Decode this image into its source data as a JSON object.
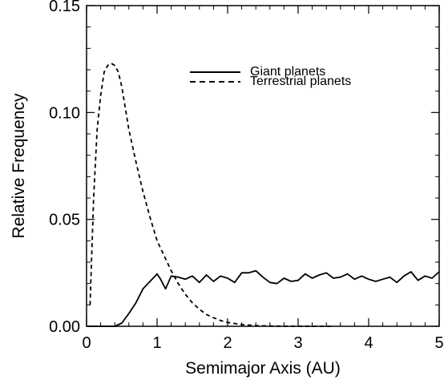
{
  "chart_data": {
    "type": "line",
    "title": "",
    "xlabel": "Semimajor Axis (AU)",
    "ylabel": "Relative Frequency",
    "xlim": [
      0,
      5
    ],
    "ylim": [
      0,
      0.15
    ],
    "x_ticks": [
      0,
      1,
      2,
      3,
      4,
      5
    ],
    "x_tick_labels": [
      "0",
      "1",
      "2",
      "3",
      "4",
      "5"
    ],
    "y_ticks": [
      0,
      0.05,
      0.1,
      0.15
    ],
    "y_tick_labels": [
      "0.00",
      "0.05",
      "0.10",
      "0.15"
    ],
    "grid": false,
    "legend_position": "top-right",
    "series": [
      {
        "name": "Giant planets",
        "line_style": "solid",
        "color": "#000000",
        "x": [
          0.02,
          0.1,
          0.2,
          0.3,
          0.4,
          0.5,
          0.6,
          0.7,
          0.8,
          0.9,
          1.0,
          1.05,
          1.12,
          1.2,
          1.3,
          1.4,
          1.5,
          1.6,
          1.7,
          1.8,
          1.9,
          2.0,
          2.1,
          2.2,
          2.3,
          2.4,
          2.5,
          2.6,
          2.7,
          2.8,
          2.9,
          3.0,
          3.1,
          3.2,
          3.3,
          3.4,
          3.5,
          3.6,
          3.7,
          3.8,
          3.9,
          4.0,
          4.1,
          4.2,
          4.3,
          4.4,
          4.5,
          4.6,
          4.7,
          4.8,
          4.9,
          5.0
        ],
        "y": [
          0.0,
          0.0,
          0.0,
          0.0,
          0.0,
          0.0015,
          0.006,
          0.011,
          0.0175,
          0.021,
          0.0245,
          0.022,
          0.0175,
          0.0235,
          0.023,
          0.022,
          0.0235,
          0.0205,
          0.024,
          0.021,
          0.0235,
          0.0225,
          0.0205,
          0.025,
          0.025,
          0.026,
          0.023,
          0.0205,
          0.02,
          0.0225,
          0.021,
          0.0215,
          0.0245,
          0.0225,
          0.024,
          0.025,
          0.0225,
          0.023,
          0.0245,
          0.022,
          0.0235,
          0.022,
          0.021,
          0.022,
          0.023,
          0.0205,
          0.0235,
          0.0255,
          0.0215,
          0.0235,
          0.0225,
          0.0255
        ]
      },
      {
        "name": "Terrestrial planets",
        "line_style": "dashed",
        "color": "#000000",
        "x": [
          0.05,
          0.1,
          0.15,
          0.2,
          0.25,
          0.3,
          0.35,
          0.4,
          0.45,
          0.5,
          0.55,
          0.6,
          0.7,
          0.8,
          0.9,
          1.0,
          1.1,
          1.2,
          1.3,
          1.4,
          1.5,
          1.6,
          1.7,
          1.8,
          1.9,
          2.0,
          2.2,
          2.4,
          2.6,
          2.8,
          3.0,
          3.2,
          3.5
        ],
        "y": [
          0.01,
          0.06,
          0.092,
          0.108,
          0.119,
          0.122,
          0.123,
          0.122,
          0.119,
          0.112,
          0.102,
          0.092,
          0.077,
          0.063,
          0.051,
          0.04,
          0.033,
          0.026,
          0.02,
          0.015,
          0.011,
          0.008,
          0.0055,
          0.004,
          0.0027,
          0.0018,
          0.0008,
          0.0003,
          0.0001,
          3e-05,
          0.0,
          0.0,
          0.0
        ]
      }
    ]
  }
}
